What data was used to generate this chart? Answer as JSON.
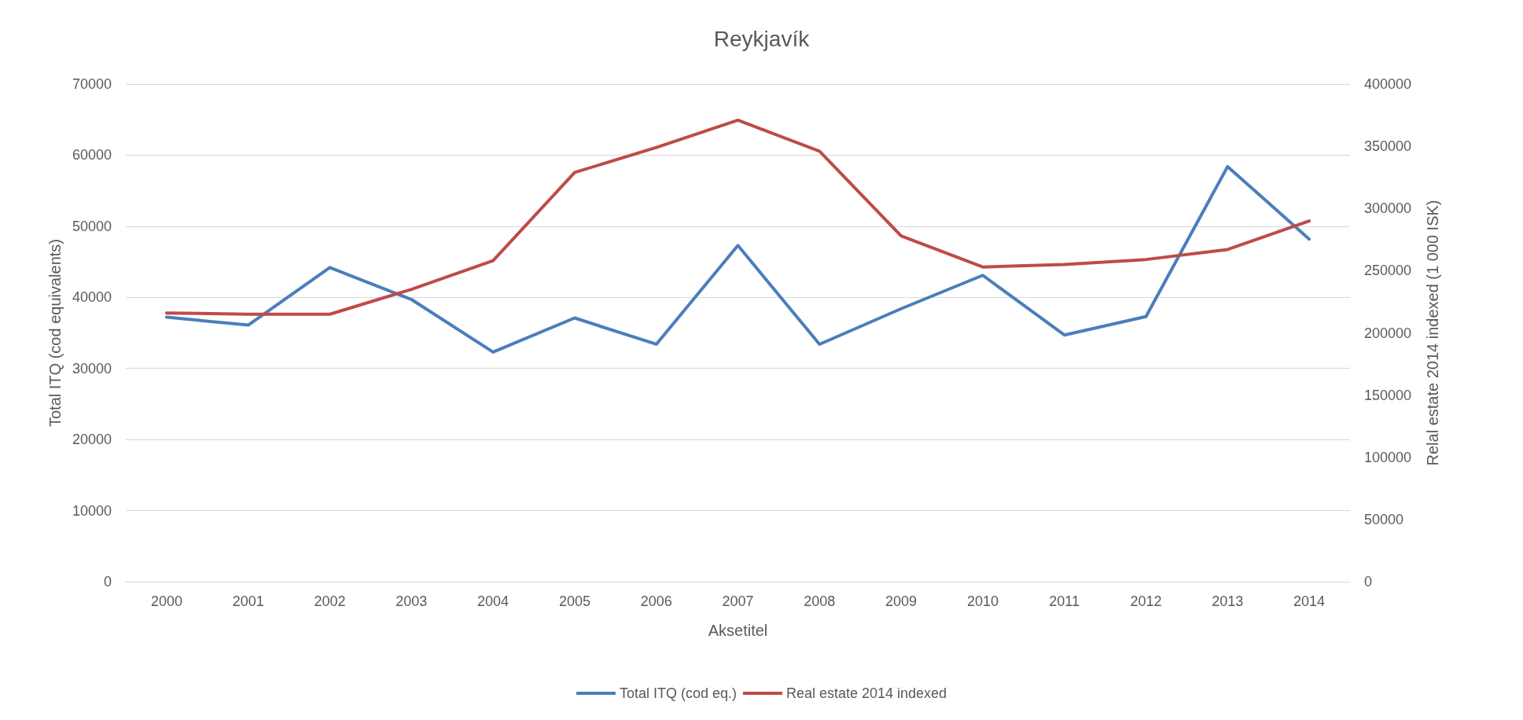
{
  "chart_data": {
    "type": "line",
    "title": "Reykjavík",
    "xlabel": "Aksetitel",
    "ylabel": "Total ITQ (cod equivalents)",
    "y2label": "Relal estate 2014 indexed (1 000 ISK)",
    "categories": [
      "2000",
      "2001",
      "2002",
      "2003",
      "2004",
      "2005",
      "2006",
      "2007",
      "2008",
      "2009",
      "2010",
      "2011",
      "2012",
      "2013",
      "2014"
    ],
    "series": [
      {
        "name": "Total ITQ (cod eq.)",
        "color": "#4a7ebb",
        "values": [
          37200,
          36100,
          44200,
          39700,
          32300,
          37100,
          33400,
          47300,
          33400,
          38400,
          43100,
          34700,
          37300,
          58400,
          48200
        ]
      },
      {
        "name": "Real estate 2014 indexed",
        "color": "#be4b48",
        "axis": "y2",
        "values": [
          216000,
          215000,
          215000,
          235000,
          258000,
          329000,
          349000,
          371000,
          346000,
          278000,
          253000,
          255000,
          259000,
          267000,
          290000
        ]
      }
    ],
    "ylim": [
      0,
      70000
    ],
    "yticks": [
      0,
      10000,
      20000,
      30000,
      40000,
      50000,
      60000,
      70000
    ],
    "y2lim": [
      0,
      400000
    ],
    "y2ticks": [
      0,
      50000,
      100000,
      150000,
      200000,
      250000,
      300000,
      350000,
      400000
    ],
    "grid": "y",
    "legend": "bottom",
    "marker": "none",
    "line_style": "solid"
  }
}
